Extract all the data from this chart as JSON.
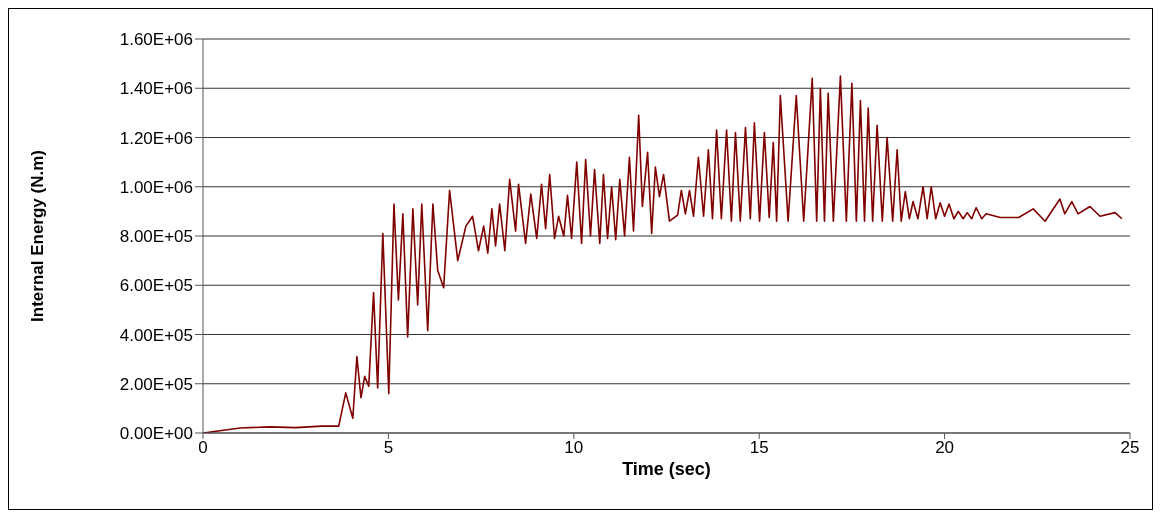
{
  "chart_data": {
    "type": "line",
    "xlabel": "Time (sec)",
    "ylabel": "Internal Energy (N.m)",
    "xlim": [
      0,
      25
    ],
    "xticks": [
      0,
      5,
      10,
      15,
      20,
      25
    ],
    "ylim": [
      0,
      1600000
    ],
    "yticks": [
      {
        "value": 0,
        "label": "0.00E+00"
      },
      {
        "value": 200000,
        "label": "2.00E+05"
      },
      {
        "value": 400000,
        "label": "4.00E+05"
      },
      {
        "value": 600000,
        "label": "6.00E+05"
      },
      {
        "value": 800000,
        "label": "8.00E+05"
      },
      {
        "value": 1000000,
        "label": "1.00E+06"
      },
      {
        "value": 1200000,
        "label": "1.20E+06"
      },
      {
        "value": 1400000,
        "label": "1.40E+06"
      },
      {
        "value": 1600000,
        "label": "1.60E+06"
      }
    ],
    "grid": "y",
    "legend": false,
    "marker": "none",
    "line_style": "solid",
    "series": [
      {
        "color": "#800000",
        "x": [
          0,
          1,
          1.8,
          2.5,
          3.2,
          3.66,
          3.85,
          4.04,
          4.15,
          4.26,
          4.36,
          4.47,
          4.6,
          4.71,
          4.85,
          5.01,
          5.15,
          5.27,
          5.39,
          5.52,
          5.66,
          5.79,
          5.9,
          6.06,
          6.2,
          6.33,
          6.49,
          6.65,
          6.87,
          7.09,
          7.27,
          7.43,
          7.57,
          7.68,
          7.79,
          7.89,
          8.0,
          8.14,
          8.27,
          8.43,
          8.51,
          8.7,
          8.84,
          9.0,
          9.13,
          9.24,
          9.35,
          9.48,
          9.59,
          9.73,
          9.83,
          9.94,
          10.08,
          10.21,
          10.32,
          10.45,
          10.56,
          10.7,
          10.8,
          10.91,
          11.02,
          11.13,
          11.24,
          11.37,
          11.5,
          11.61,
          11.75,
          11.85,
          11.99,
          12.1,
          12.2,
          12.31,
          12.42,
          12.58,
          12.8,
          12.9,
          13.01,
          13.12,
          13.23,
          13.36,
          13.5,
          13.63,
          13.74,
          13.85,
          13.98,
          14.12,
          14.25,
          14.36,
          14.49,
          14.63,
          14.76,
          14.87,
          15.01,
          15.14,
          15.27,
          15.38,
          15.47,
          15.57,
          15.78,
          16.0,
          16.2,
          16.43,
          16.55,
          16.65,
          16.76,
          16.86,
          17.0,
          17.19,
          17.35,
          17.5,
          17.62,
          17.73,
          17.84,
          17.94,
          18.06,
          18.18,
          18.32,
          18.45,
          18.6,
          18.72,
          18.83,
          18.94,
          19.05,
          19.15,
          19.28,
          19.42,
          19.53,
          19.64,
          19.76,
          19.88,
          20.0,
          20.12,
          20.25,
          20.37,
          20.5,
          20.61,
          20.73,
          20.85,
          21.0,
          21.12,
          21.5,
          22.0,
          22.39,
          22.71,
          23.11,
          23.24,
          23.43,
          23.6,
          23.92,
          24.19,
          24.6,
          24.78
        ],
        "values": [
          0,
          20000,
          25000,
          22000,
          28000,
          28000,
          163000,
          60000,
          310000,
          143000,
          230000,
          190000,
          570000,
          183000,
          810000,
          160000,
          930000,
          540000,
          890000,
          390000,
          910000,
          520000,
          930000,
          415000,
          930000,
          660000,
          590000,
          985000,
          700000,
          840000,
          880000,
          740000,
          840000,
          730000,
          910000,
          760000,
          930000,
          740000,
          1030000,
          820000,
          1010000,
          770000,
          970000,
          790000,
          1010000,
          830000,
          1050000,
          790000,
          880000,
          800000,
          965000,
          790000,
          1100000,
          770000,
          1110000,
          800000,
          1070000,
          770000,
          1050000,
          790000,
          1000000,
          785000,
          1030000,
          800000,
          1120000,
          820000,
          1290000,
          920000,
          1140000,
          810000,
          1080000,
          960000,
          1050000,
          860000,
          885000,
          985000,
          890000,
          985000,
          880000,
          1120000,
          880000,
          1150000,
          870000,
          1230000,
          870000,
          1230000,
          860000,
          1220000,
          860000,
          1240000,
          870000,
          1260000,
          860000,
          1220000,
          875000,
          1180000,
          860000,
          1370000,
          860000,
          1370000,
          860000,
          1440000,
          860000,
          1400000,
          860000,
          1380000,
          860000,
          1450000,
          860000,
          1420000,
          860000,
          1350000,
          860000,
          1320000,
          860000,
          1250000,
          860000,
          1200000,
          860000,
          1150000,
          860000,
          980000,
          870000,
          940000,
          870000,
          1000000,
          870000,
          1000000,
          870000,
          935000,
          880000,
          930000,
          870000,
          900000,
          870000,
          895000,
          870000,
          915000,
          870000,
          890000,
          875000,
          875000,
          910000,
          860000,
          950000,
          890000,
          940000,
          890000,
          920000,
          880000,
          895000,
          870000
        ]
      }
    ]
  }
}
